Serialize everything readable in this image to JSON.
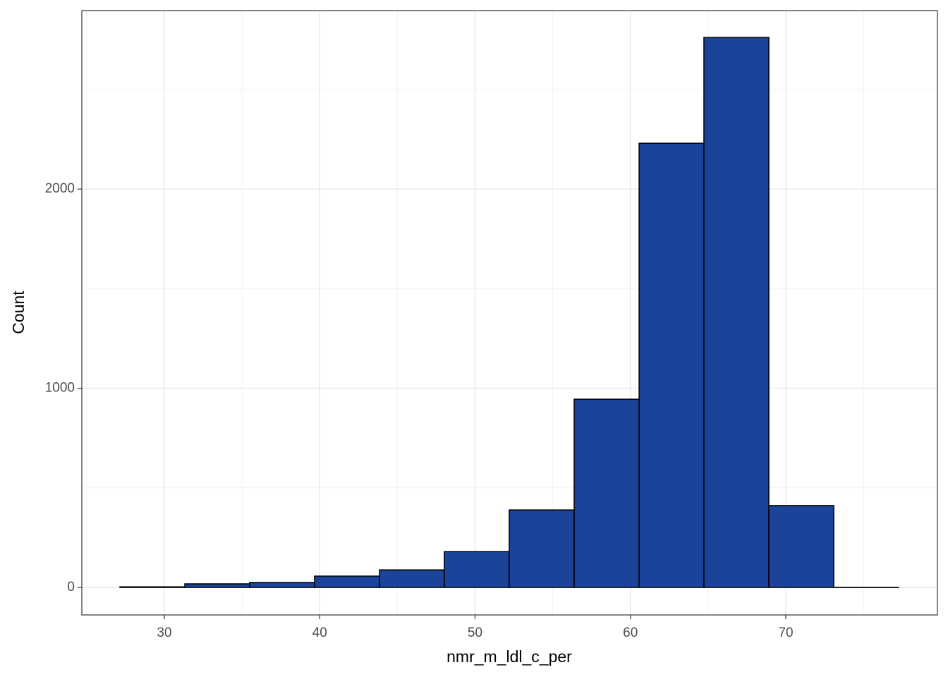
{
  "chart_data": {
    "type": "histogram",
    "xlabel": "nmr_m_ldl_c_per",
    "ylabel": "Count",
    "bins": [
      27.14,
      31.32,
      35.49,
      39.67,
      43.85,
      48.02,
      52.2,
      56.38,
      60.56,
      64.73,
      68.91,
      73.09,
      77.26
    ],
    "counts": [
      3,
      18,
      25,
      57,
      88,
      180,
      389,
      945,
      2230,
      2761,
      411,
      1
    ],
    "color": "#1a4399",
    "edgecolor": "#000000",
    "xlim": [
      24.69,
      79.76
    ],
    "xticks": [
      30,
      40,
      50,
      60,
      70
    ],
    "ylim": [
      -138,
      2896
    ],
    "yticks": [
      0,
      1000,
      2000
    ],
    "grid": true
  }
}
